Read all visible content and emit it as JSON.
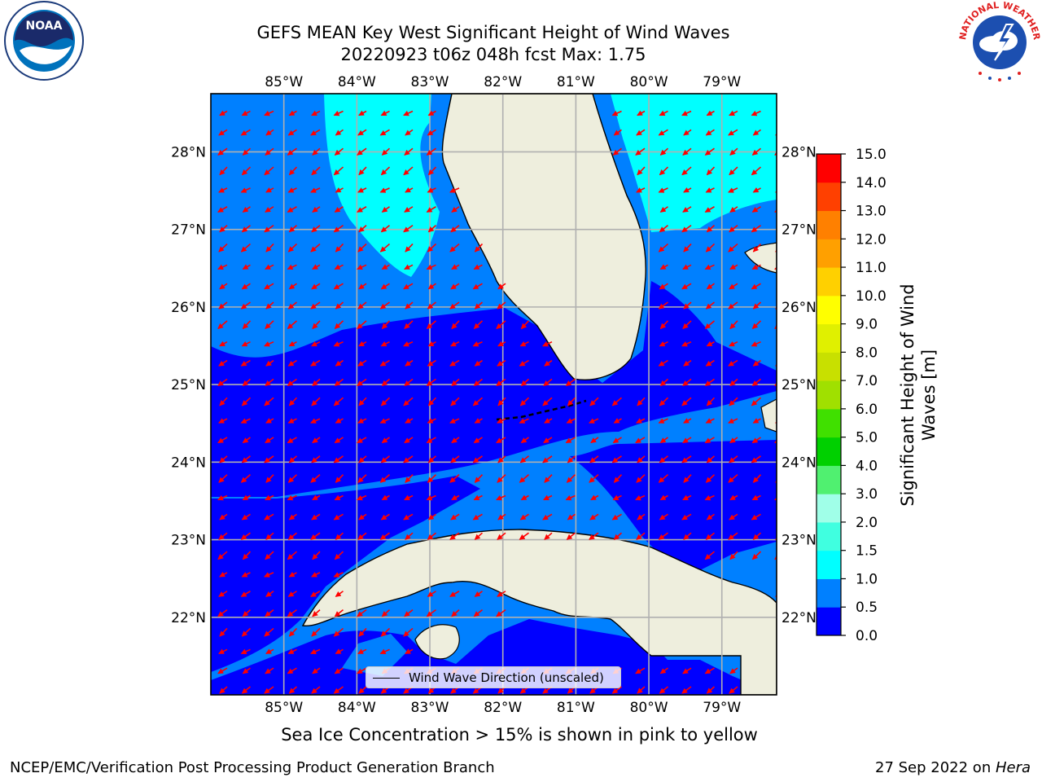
{
  "title": {
    "line1": "GEFS MEAN Key West Significant Height of Wind Waves",
    "line2": "20220923 t06z 048h fcst   Max: 1.75"
  },
  "logos": {
    "left": {
      "icon": "noaa-logo-icon",
      "text": "NOAA"
    },
    "right": {
      "icon": "nws-logo-icon",
      "ring_text": "NATIONAL WEATHER SERVICE"
    }
  },
  "map": {
    "lon_ticks": [
      "85°W",
      "84°W",
      "83°W",
      "82°W",
      "81°W",
      "80°W",
      "79°W"
    ],
    "lat_ticks": [
      "28°N",
      "27°N",
      "26°N",
      "25°N",
      "24°N",
      "23°N",
      "22°N"
    ],
    "lon_range": [
      -86.0,
      -78.25
    ],
    "lat_range": [
      21.0,
      28.75
    ],
    "colors": {
      "land": "#eeeedd",
      "band_0_0_5": "#0000ff",
      "band_0_5_1_0": "#0080ff",
      "band_1_0_1_5": "#00ffff",
      "arrow": "#ff0000",
      "grid": "#b0b0b0"
    },
    "arrow_direction": "from northeast toward southwest"
  },
  "colorbar": {
    "title_line1": "Significant Height of Wind",
    "title_line2": "Waves [m]",
    "ticks": [
      "0.0",
      "0.5",
      "1.0",
      "1.5",
      "2.0",
      "3.0",
      "4.0",
      "5.0",
      "6.0",
      "7.0",
      "8.0",
      "9.0",
      "10.0",
      "11.0",
      "12.0",
      "13.0",
      "14.0",
      "15.0"
    ],
    "colors": [
      "#0000ff",
      "#0080ff",
      "#00ffff",
      "#40ffe0",
      "#a0ffe8",
      "#50f070",
      "#00d000",
      "#40e000",
      "#a0e000",
      "#c8e000",
      "#e0f000",
      "#ffff00",
      "#ffd000",
      "#ffa000",
      "#ff8000",
      "#ff4000",
      "#ff0000"
    ]
  },
  "legend": {
    "label": "Wind Wave Direction (unscaled)"
  },
  "caption": "Sea Ice Concentration > 15% is shown in pink to yellow",
  "footer": {
    "left": "NCEP/EMC/Verification Post Processing Product Generation Branch",
    "right_prefix": "27 Sep 2022 on ",
    "right_host": "Hera"
  }
}
